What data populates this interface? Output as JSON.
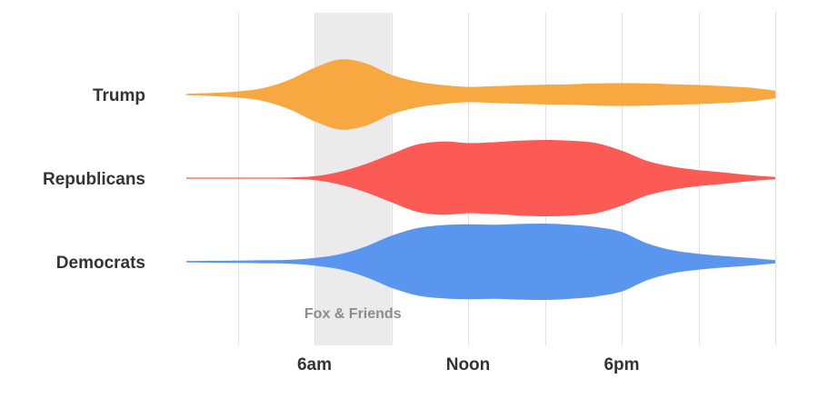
{
  "chart_data": {
    "type": "area",
    "x_unit": "hour of day",
    "xlim": [
      0,
      24
    ],
    "x_ticks": [
      {
        "value": 6,
        "label": "6am"
      },
      {
        "value": 12,
        "label": "Noon"
      },
      {
        "value": 18,
        "label": "6pm"
      }
    ],
    "gridline_hours": [
      3,
      6,
      9,
      12,
      15,
      18,
      21,
      24
    ],
    "grid": true,
    "annotation": {
      "label": "Fox & Friends",
      "start": 6,
      "end": 9,
      "color": "#ebebeb"
    },
    "series": [
      {
        "name": "Trump",
        "color": "#f7a840",
        "x": [
          0,
          1,
          2,
          3,
          4,
          5,
          6,
          7,
          8,
          9,
          10,
          11,
          12,
          13,
          14,
          15,
          16,
          17,
          18,
          19,
          20,
          21,
          22,
          23,
          24
        ],
        "values": [
          0.01,
          0.02,
          0.04,
          0.08,
          0.17,
          0.38,
          0.7,
          0.92,
          0.82,
          0.52,
          0.34,
          0.25,
          0.2,
          0.22,
          0.24,
          0.26,
          0.27,
          0.29,
          0.3,
          0.29,
          0.27,
          0.25,
          0.22,
          0.18,
          0.1
        ]
      },
      {
        "name": "Republicans",
        "color": "#fb5b54",
        "x": [
          0,
          1,
          2,
          3,
          4,
          5,
          6,
          7,
          8,
          9,
          10,
          11,
          12,
          13,
          14,
          15,
          16,
          17,
          18,
          19,
          20,
          21,
          22,
          23,
          24
        ],
        "values": [
          0.005,
          0.005,
          0.006,
          0.008,
          0.012,
          0.02,
          0.05,
          0.17,
          0.37,
          0.63,
          0.88,
          0.96,
          0.92,
          0.94,
          0.98,
          1.0,
          0.98,
          0.92,
          0.72,
          0.45,
          0.3,
          0.21,
          0.15,
          0.08,
          0.03
        ]
      },
      {
        "name": "Democrats",
        "color": "#5b96ee",
        "x": [
          0,
          1,
          2,
          3,
          4,
          5,
          6,
          7,
          8,
          9,
          10,
          11,
          12,
          13,
          14,
          15,
          16,
          17,
          18,
          19,
          20,
          21,
          22,
          23,
          24
        ],
        "values": [
          0.02,
          0.02,
          0.025,
          0.03,
          0.04,
          0.05,
          0.1,
          0.2,
          0.4,
          0.68,
          0.88,
          0.96,
          0.98,
          0.97,
          0.99,
          1.0,
          0.97,
          0.91,
          0.78,
          0.48,
          0.3,
          0.21,
          0.15,
          0.1,
          0.04
        ]
      }
    ]
  }
}
